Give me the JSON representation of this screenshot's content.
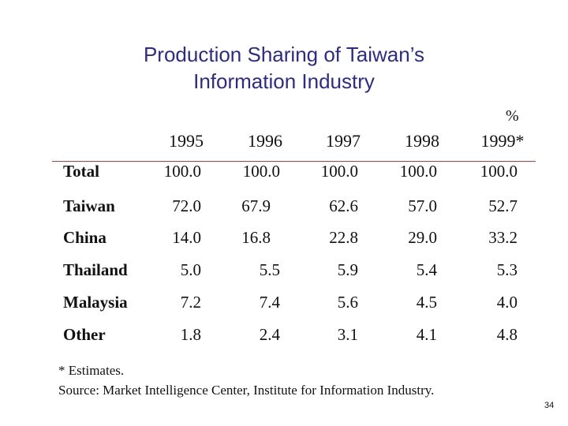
{
  "slide": {
    "title_line1": "Production Sharing of Taiwan’s",
    "title_line2": "Information Industry",
    "unit": "%",
    "page_number": "34"
  },
  "table": {
    "years": [
      "1995",
      "1996",
      "1997",
      "1998",
      "1999*"
    ],
    "rows": [
      {
        "label": "Total",
        "values": [
          "100.0",
          "100.0",
          "100.0",
          "100.0",
          "100.0"
        ]
      },
      {
        "label": "Taiwan",
        "values": [
          "72.0",
          "67.9",
          "62.6",
          "57.0",
          "52.7"
        ]
      },
      {
        "label": "China",
        "values": [
          "14.0",
          "16.8",
          "22.8",
          "29.0",
          "33.2"
        ]
      },
      {
        "label": "Thailand",
        "values": [
          "5.0",
          "5.5",
          "5.9",
          "5.4",
          "5.3"
        ]
      },
      {
        "label": "Malaysia",
        "values": [
          "7.2",
          "7.4",
          "5.6",
          "4.5",
          "4.0"
        ]
      },
      {
        "label": "Other",
        "values": [
          "1.8",
          "2.4",
          "3.1",
          "4.1",
          "4.8"
        ]
      }
    ]
  },
  "notes": {
    "estimate_note": "* Estimates.",
    "source": "Source: Market Intelligence Center, Institute for Information Industry."
  },
  "colors": {
    "title": "#2b2b8f",
    "rule": "#c23a3a"
  }
}
